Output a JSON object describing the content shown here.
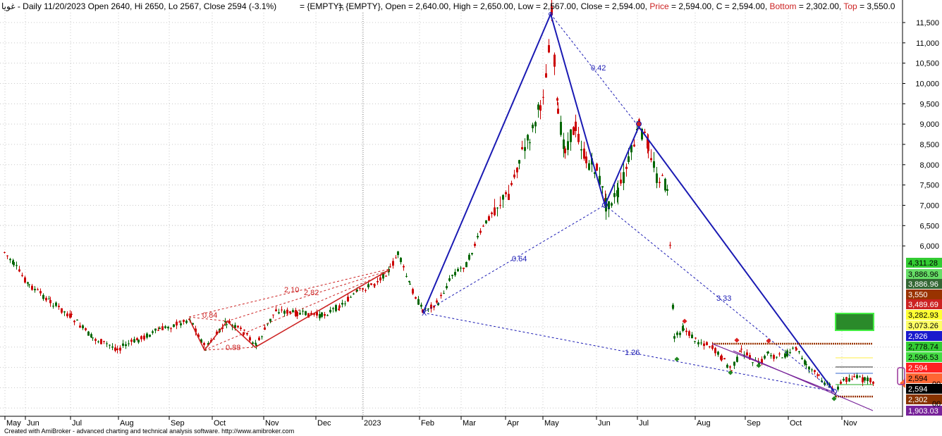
{
  "chart_data": {
    "type": "candlestick",
    "header": {
      "symbol": "غويا",
      "summary": " - Daily 11/20/2023 Open 2640, Hi 2650, Lo 2567, Close 2594 (-3.1%)",
      "empty1": "= {EMPTY},",
      "ohlc_prefix": "= {EMPTY}, Open = 2,640.00, High = 2,650.00, Low = 2,567.00, Close = 2,594.00,",
      "price_label": "Price",
      "price_value": "= 2,594.00,",
      "c_label": "C",
      "c_value": "= 2,594.00,",
      "bottom_label": "Bottom",
      "bottom_value": "= 2,302.00,",
      "top_label": "Top",
      "top_value": "= 3,550.0"
    },
    "y_ticks": [
      {
        "v": 11500,
        "label": "11,500"
      },
      {
        "v": 11000,
        "label": "11,000"
      },
      {
        "v": 10500,
        "label": "10,500"
      },
      {
        "v": 10000,
        "label": "10,000"
      },
      {
        "v": 9500,
        "label": "9,500"
      },
      {
        "v": 9000,
        "label": "9,000"
      },
      {
        "v": 8500,
        "label": "8,500"
      },
      {
        "v": 8000,
        "label": "8,000"
      },
      {
        "v": 7500,
        "label": "7,500"
      },
      {
        "v": 7000,
        "label": "7,000"
      },
      {
        "v": 6500,
        "label": "6,500"
      },
      {
        "v": 6000,
        "label": "6,000"
      }
    ],
    "x_labels": [
      "May",
      "Jun",
      "Jul",
      "Aug",
      "Sep",
      "Oct",
      "Nov",
      "Dec",
      "2023",
      "Feb",
      "Mar",
      "Apr",
      "May",
      "Jun",
      "Jul",
      "Aug",
      "Sep",
      "Oct",
      "Nov"
    ],
    "price_tags": [
      {
        "label": "4,311.28",
        "bg": "#33cc33",
        "fg": "#000000"
      },
      {
        "label": "3,886.96",
        "bg": "#66dd66",
        "fg": "#000000"
      },
      {
        "label": "3,886.96",
        "bg": "#336633",
        "fg": "#ffffff"
      },
      {
        "label": "3,550",
        "bg": "#993300",
        "fg": "#ffffff"
      },
      {
        "label": "3,489.69",
        "bg": "#cc2222",
        "fg": "#ffffff"
      },
      {
        "label": "3,282.93",
        "bg": "#ffff33",
        "fg": "#000000"
      },
      {
        "label": "3,073.26",
        "bg": "#ffff66",
        "fg": "#000000"
      },
      {
        "label": "2,926",
        "bg": "#1a1acc",
        "fg": "#ffffff"
      },
      {
        "label": "2,778.74",
        "bg": "#33cc33",
        "fg": "#000000"
      },
      {
        "label": "2,596.53",
        "bg": "#44dd44",
        "fg": "#000000"
      },
      {
        "label": "2,594",
        "bg": "#ff2222",
        "fg": "#ffffff"
      },
      {
        "label": "2,594",
        "bg": "#ff6633",
        "fg": "#000000"
      },
      {
        "label": "2,594",
        "bg": "#000000",
        "fg": "#ffffff"
      },
      {
        "label": "2,302",
        "bg": "#883300",
        "fg": "#ffffff"
      },
      {
        "label": "1,903.03",
        "bg": "#772299",
        "fg": "#ffffff"
      }
    ],
    "axis_fragments": [
      "00",
      "00"
    ],
    "harmonic_ratios": [
      "0.42",
      "0.64",
      "3.33",
      "1.26"
    ],
    "left_ratios": [
      "2.10",
      "2.82",
      "0.84",
      "0.88"
    ],
    "grid": true,
    "colors": {
      "up": "#006600",
      "down": "#cc0000",
      "pattern": "#1a1ab3",
      "left_pattern": "#cc2222",
      "grid": "#c8c8c8"
    },
    "footer": "Created with AmiBroker - advanced charting and technical analysis software. http://www.amibroker.com"
  }
}
